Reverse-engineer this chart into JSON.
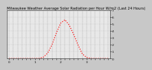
{
  "title": "Milwaukee Weather Average Solar Radiation per Hour W/m2 (Last 24 Hours)",
  "x_values": [
    0,
    1,
    2,
    3,
    4,
    5,
    6,
    7,
    8,
    9,
    10,
    11,
    12,
    13,
    14,
    15,
    16,
    17,
    18,
    19,
    20,
    21,
    22,
    23
  ],
  "y_values": [
    0,
    0,
    0,
    0,
    0,
    0,
    0,
    2,
    20,
    80,
    200,
    370,
    510,
    560,
    480,
    350,
    200,
    70,
    15,
    1,
    0,
    0,
    0,
    0
  ],
  "line_color": "#ff0000",
  "bg_color": "#c8c8c8",
  "plot_bg_color": "#e8e8e8",
  "grid_color": "#888888",
  "ylim": [
    0,
    700
  ],
  "ytick_values": [
    0,
    100,
    200,
    300,
    400,
    500,
    600,
    700
  ],
  "ytick_labels": [
    "0",
    "1",
    "2",
    "3",
    "4",
    "5",
    "6",
    "7"
  ],
  "xtick_labels": [
    "0",
    "",
    "",
    "",
    "",
    "",
    "1",
    "",
    "",
    "",
    "",
    "",
    "2",
    "",
    "",
    "",
    "",
    "",
    "3",
    "",
    "",
    "",
    "",
    ""
  ],
  "title_fontsize": 3.8,
  "tick_fontsize": 3.2,
  "line_width": 0.9,
  "line_dotsize": 1.5
}
